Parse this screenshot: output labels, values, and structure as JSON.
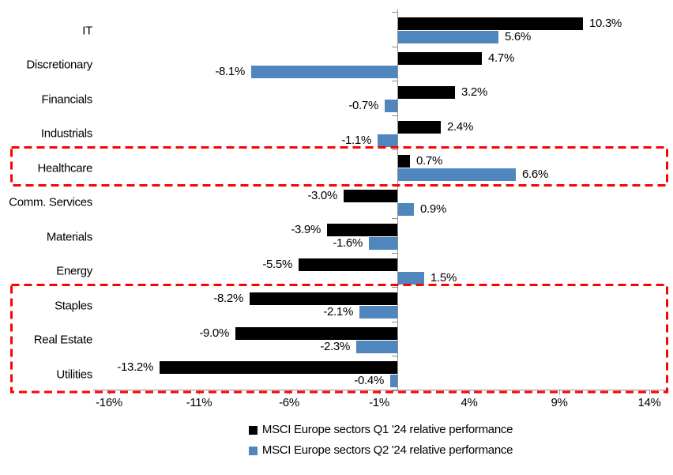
{
  "chart_data": {
    "type": "bar",
    "orientation": "horizontal",
    "categories": [
      "IT",
      "Discretionary",
      "Financials",
      "Industrials",
      "Healthcare",
      "Comm. Services",
      "Materials",
      "Energy",
      "Staples",
      "Real Estate",
      "Utilities"
    ],
    "series": [
      {
        "name": "MSCI Europe sectors Q1 '24 relative performance",
        "color": "#000000",
        "values": [
          10.3,
          4.7,
          3.2,
          2.4,
          0.7,
          -3.0,
          -3.9,
          -5.5,
          -8.2,
          -9.0,
          -13.2
        ]
      },
      {
        "name": "MSCI Europe sectors Q2 '24 relative performance",
        "color": "#4F86BE",
        "values": [
          5.6,
          -8.1,
          -0.7,
          -1.1,
          6.6,
          0.9,
          -1.6,
          1.5,
          -2.1,
          -2.3,
          -0.4
        ]
      }
    ],
    "value_labels": true,
    "value_label_format": "0.0%",
    "x_axis": {
      "tick_labels": [
        "-16%",
        "-11%",
        "-6%",
        "-1%",
        "4%",
        "9%",
        "14%"
      ],
      "tick_values": [
        -16,
        -11,
        -6,
        -1,
        4,
        9,
        14
      ],
      "min": -17,
      "max": 15
    },
    "grid": false,
    "legend_position": "bottom",
    "axis_color": "#909090",
    "annotations": [
      {
        "id": "healthcare-highlight",
        "type": "dashed-box",
        "start_row": 4,
        "end_row": 4,
        "color": "#FF0000"
      },
      {
        "id": "defensives-highlight",
        "type": "dashed-box",
        "start_row": 8,
        "end_row": 10,
        "color": "#FF0000"
      }
    ]
  }
}
